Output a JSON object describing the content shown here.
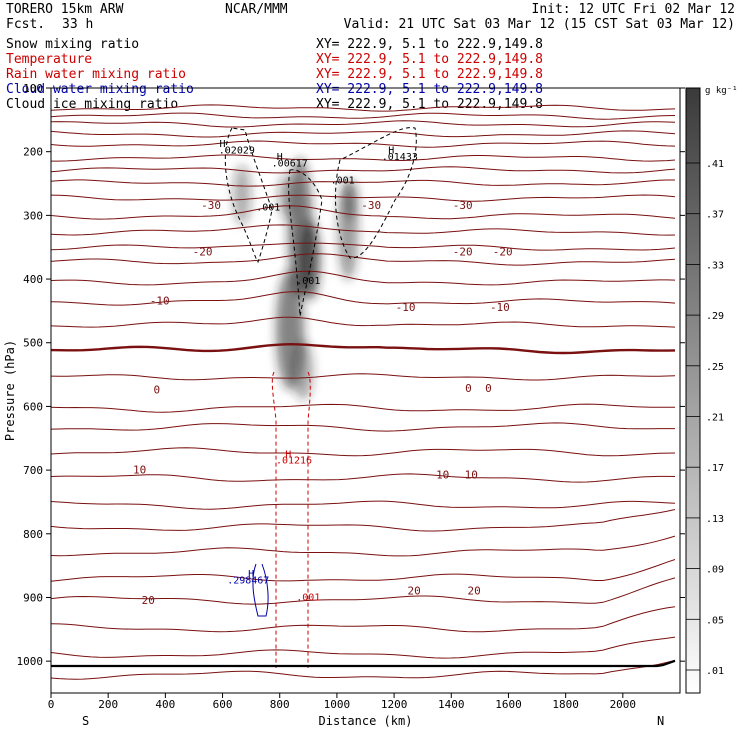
{
  "header": {
    "model": "TORERO  15km ARW",
    "forecast_label": "Fcst.",
    "forecast_hours": "33 h",
    "center": "NCAR/MMM",
    "init": "Init: 12 UTC Fri 02 Mar 12",
    "valid": "Valid: 21 UTC Sat 03 Mar 12 (15 CST Sat 03 Mar 12)"
  },
  "legend": [
    {
      "label": "Snow mixing ratio",
      "xy": "XY= 222.9,  5.1 to 222.9,149.8",
      "color": "#000000"
    },
    {
      "label": "Temperature",
      "xy": "XY= 222.9,  5.1 to 222.9,149.8",
      "color": "#cc0000"
    },
    {
      "label": "Rain water mixing ratio",
      "xy": "XY= 222.9,  5.1 to 222.9,149.8",
      "color": "#cc0000"
    },
    {
      "label": "Cloud water mixing ratio",
      "xy": "XY= 222.9,  5.1 to 222.9,149.8",
      "color": "#0000aa"
    },
    {
      "label": "Cloud ice mixing ratio",
      "xy": "XY= 222.9,  5.1 to 222.9,149.8",
      "color": "#000000"
    }
  ],
  "chart_data": {
    "type": "cross-section",
    "ylabel": "Pressure (hPa)",
    "xlabel": "Distance (km)",
    "x_left_label": "S",
    "x_right_label": "N",
    "xlim": [
      0,
      2200
    ],
    "ylim": [
      1050,
      100
    ],
    "x_ticks": [
      0,
      200,
      400,
      600,
      800,
      1000,
      1200,
      1400,
      1600,
      1800,
      2000
    ],
    "y_ticks": [
      100,
      200,
      300,
      400,
      500,
      600,
      700,
      800,
      900,
      1000
    ],
    "colorbar": {
      "unit": "g kg⁻¹",
      "levels": [
        ".01",
        ".05",
        ".09",
        ".13",
        ".17",
        ".21",
        ".25",
        ".29",
        ".33",
        ".37",
        ".41"
      ]
    },
    "temperature_labels": [
      {
        "text": "-30",
        "x": 560,
        "p": 290
      },
      {
        "text": "-30",
        "x": 1120,
        "p": 290
      },
      {
        "text": "-30",
        "x": 1440,
        "p": 290
      },
      {
        "text": "-20",
        "x": 530,
        "p": 363
      },
      {
        "text": "-20",
        "x": 1440,
        "p": 363
      },
      {
        "text": "-20",
        "x": 1580,
        "p": 363
      },
      {
        "text": "-10",
        "x": 380,
        "p": 440
      },
      {
        "text": "-10",
        "x": 1240,
        "p": 450
      },
      {
        "text": "-10",
        "x": 1570,
        "p": 450
      },
      {
        "text": "0",
        "x": 370,
        "p": 580
      },
      {
        "text": "0",
        "x": 1460,
        "p": 577
      },
      {
        "text": "0",
        "x": 1530,
        "p": 577
      },
      {
        "text": "10",
        "x": 310,
        "p": 705
      },
      {
        "text": "10",
        "x": 1370,
        "p": 713
      },
      {
        "text": "10",
        "x": 1470,
        "p": 713
      },
      {
        "text": "20",
        "x": 340,
        "p": 910
      },
      {
        "text": "20",
        "x": 1270,
        "p": 895
      },
      {
        "text": "20",
        "x": 1480,
        "p": 895
      }
    ],
    "max_labels": [
      {
        "text": "H",
        "x": 600,
        "p": 193,
        "color": "#000000"
      },
      {
        "text": ".02029",
        "x": 650,
        "p": 203,
        "color": "#000000"
      },
      {
        "text": "H",
        "x": 800,
        "p": 213,
        "color": "#000000"
      },
      {
        "text": ".00617",
        "x": 835,
        "p": 223,
        "color": "#000000"
      },
      {
        "text": ".001",
        "x": 760,
        "p": 292,
        "color": "#000000"
      },
      {
        "text": ".001",
        "x": 1020,
        "p": 250,
        "color": "#000000"
      },
      {
        "text": "H",
        "x": 1190,
        "p": 203,
        "color": "#000000"
      },
      {
        "text": ".01433",
        "x": 1220,
        "p": 213,
        "color": "#000000"
      },
      {
        "text": ".001",
        "x": 900,
        "p": 408,
        "color": "#000000"
      },
      {
        "text": "H",
        "x": 830,
        "p": 680,
        "color": "#cc0000"
      },
      {
        "text": ".01216",
        "x": 850,
        "p": 690,
        "color": "#cc0000"
      },
      {
        "text": ".001",
        "x": 900,
        "p": 905,
        "color": "#cc0000"
      },
      {
        "text": "H",
        "x": 700,
        "p": 868,
        "color": "#0000aa"
      },
      {
        "text": ".298467",
        "x": 690,
        "p": 878,
        "color": "#0000aa"
      }
    ]
  }
}
